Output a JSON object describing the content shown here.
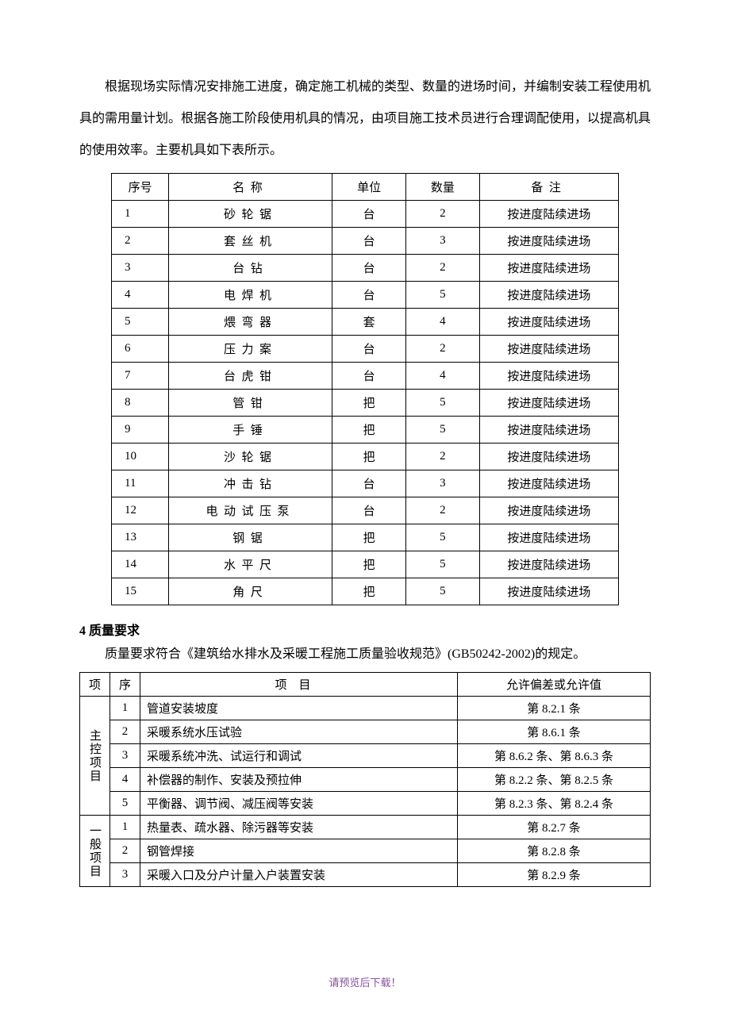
{
  "intro": "根据现场实际情况安排施工进度，确定施工机械的类型、数量的进场时间，并编制安装工程使用机具的需用量计划。根据各施工阶段使用机具的情况，由项目施工技术员进行合理调配使用，以提高机具的使用效率。主要机具如下表所示。",
  "table1": {
    "headers": {
      "seq": "序号",
      "name": "名称",
      "unit": "单位",
      "qty": "数量",
      "note": "备注"
    },
    "rows": [
      {
        "seq": "1",
        "name": "砂轮锯",
        "unit": "台",
        "qty": "2",
        "note": "按进度陆续进场"
      },
      {
        "seq": "2",
        "name": "套丝机",
        "unit": "台",
        "qty": "3",
        "note": "按进度陆续进场"
      },
      {
        "seq": "3",
        "name": "台钻",
        "unit": "台",
        "qty": "2",
        "note": "按进度陆续进场"
      },
      {
        "seq": "4",
        "name": "电焊机",
        "unit": "台",
        "qty": "5",
        "note": "按进度陆续进场"
      },
      {
        "seq": "5",
        "name": "煨弯器",
        "unit": "套",
        "qty": "4",
        "note": "按进度陆续进场"
      },
      {
        "seq": "6",
        "name": "压力案",
        "unit": "台",
        "qty": "2",
        "note": "按进度陆续进场"
      },
      {
        "seq": "7",
        "name": "台虎钳",
        "unit": "台",
        "qty": "4",
        "note": "按进度陆续进场"
      },
      {
        "seq": "8",
        "name": "管钳",
        "unit": "把",
        "qty": "5",
        "note": "按进度陆续进场"
      },
      {
        "seq": "9",
        "name": "手锤",
        "unit": "把",
        "qty": "5",
        "note": "按进度陆续进场"
      },
      {
        "seq": "10",
        "name": "沙轮锯",
        "unit": "把",
        "qty": "2",
        "note": "按进度陆续进场"
      },
      {
        "seq": "11",
        "name": "冲击钻",
        "unit": "台",
        "qty": "3",
        "note": "按进度陆续进场"
      },
      {
        "seq": "12",
        "name": "电动试压泵",
        "unit": "台",
        "qty": "2",
        "note": "按进度陆续进场"
      },
      {
        "seq": "13",
        "name": "钢锯",
        "unit": "把",
        "qty": "5",
        "note": "按进度陆续进场"
      },
      {
        "seq": "14",
        "name": "水平尺",
        "unit": "把",
        "qty": "5",
        "note": "按进度陆续进场"
      },
      {
        "seq": "15",
        "name": "角尺",
        "unit": "把",
        "qty": "5",
        "note": "按进度陆续进场"
      }
    ]
  },
  "section4": {
    "heading": "4 质量要求",
    "intro": "质量要求符合《建筑给水排水及采暖工程施工质量验收规范》(GB50242-2002)的规定。"
  },
  "table2": {
    "headers": {
      "cat": "项",
      "seq": "序",
      "item": "项目",
      "val": "允许偏差或允许值"
    },
    "groups": [
      {
        "category": "主控项目",
        "rows": [
          {
            "seq": "1",
            "item": "管道安装坡度",
            "val": "第 8.2.1 条"
          },
          {
            "seq": "2",
            "item": "采暖系统水压试验",
            "val": "第 8.6.1 条"
          },
          {
            "seq": "3",
            "item": "采暖系统冲洗、试运行和调试",
            "val": "第 8.6.2 条、第 8.6.3 条"
          },
          {
            "seq": "4",
            "item": "补偿器的制作、安装及预拉伸",
            "val": "第 8.2.2 条、第 8.2.5 条"
          },
          {
            "seq": "5",
            "item": "平衡器、调节阀、减压阀等安装",
            "val": "第 8.2.3 条、第 8.2.4 条"
          }
        ]
      },
      {
        "category": "一般项目",
        "rows": [
          {
            "seq": "1",
            "item": "热量表、疏水器、除污器等安装",
            "val": "第 8.2.7 条"
          },
          {
            "seq": "2",
            "item": "钢管焊接",
            "val": "第 8.2.8 条"
          },
          {
            "seq": "3",
            "item": "采暖入口及分户计量入户装置安装",
            "val": "第 8.2.9 条"
          }
        ]
      }
    ]
  },
  "footer": "请预览后下载！"
}
